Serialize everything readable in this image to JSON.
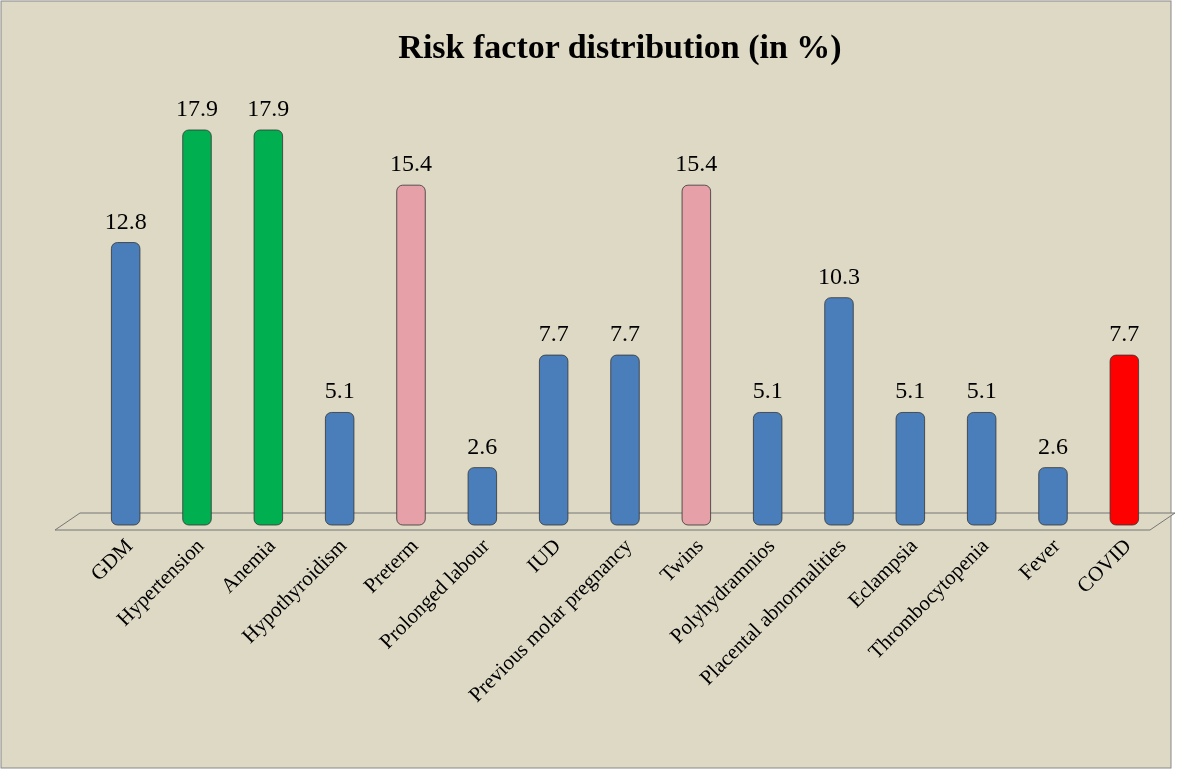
{
  "chart_data": {
    "type": "bar",
    "title": "Risk factor distribution (in %)",
    "categories": [
      "GDM",
      "Hypertension",
      "Anemia",
      "Hypothyroidism",
      "Preterm",
      "Prolonged labour",
      "IUD",
      "Previous molar pregnancy",
      "Twins",
      "Polyhydramnios",
      "Placental abnormalities",
      "Eclampsia",
      "Thrombocytopenia",
      "Fever",
      "COVID"
    ],
    "values": [
      12.8,
      17.9,
      17.9,
      5.1,
      15.4,
      2.6,
      7.7,
      7.7,
      15.4,
      5.1,
      10.3,
      5.1,
      5.1,
      2.6,
      7.7
    ],
    "colors": [
      "#4a7ebb",
      "#00b050",
      "#00b050",
      "#4a7ebb",
      "#e6a0a8",
      "#4a7ebb",
      "#4a7ebb",
      "#4a7ebb",
      "#e6a0a8",
      "#4a7ebb",
      "#4a7ebb",
      "#4a7ebb",
      "#4a7ebb",
      "#4a7ebb",
      "#ff0000"
    ],
    "data_labels": true
  }
}
